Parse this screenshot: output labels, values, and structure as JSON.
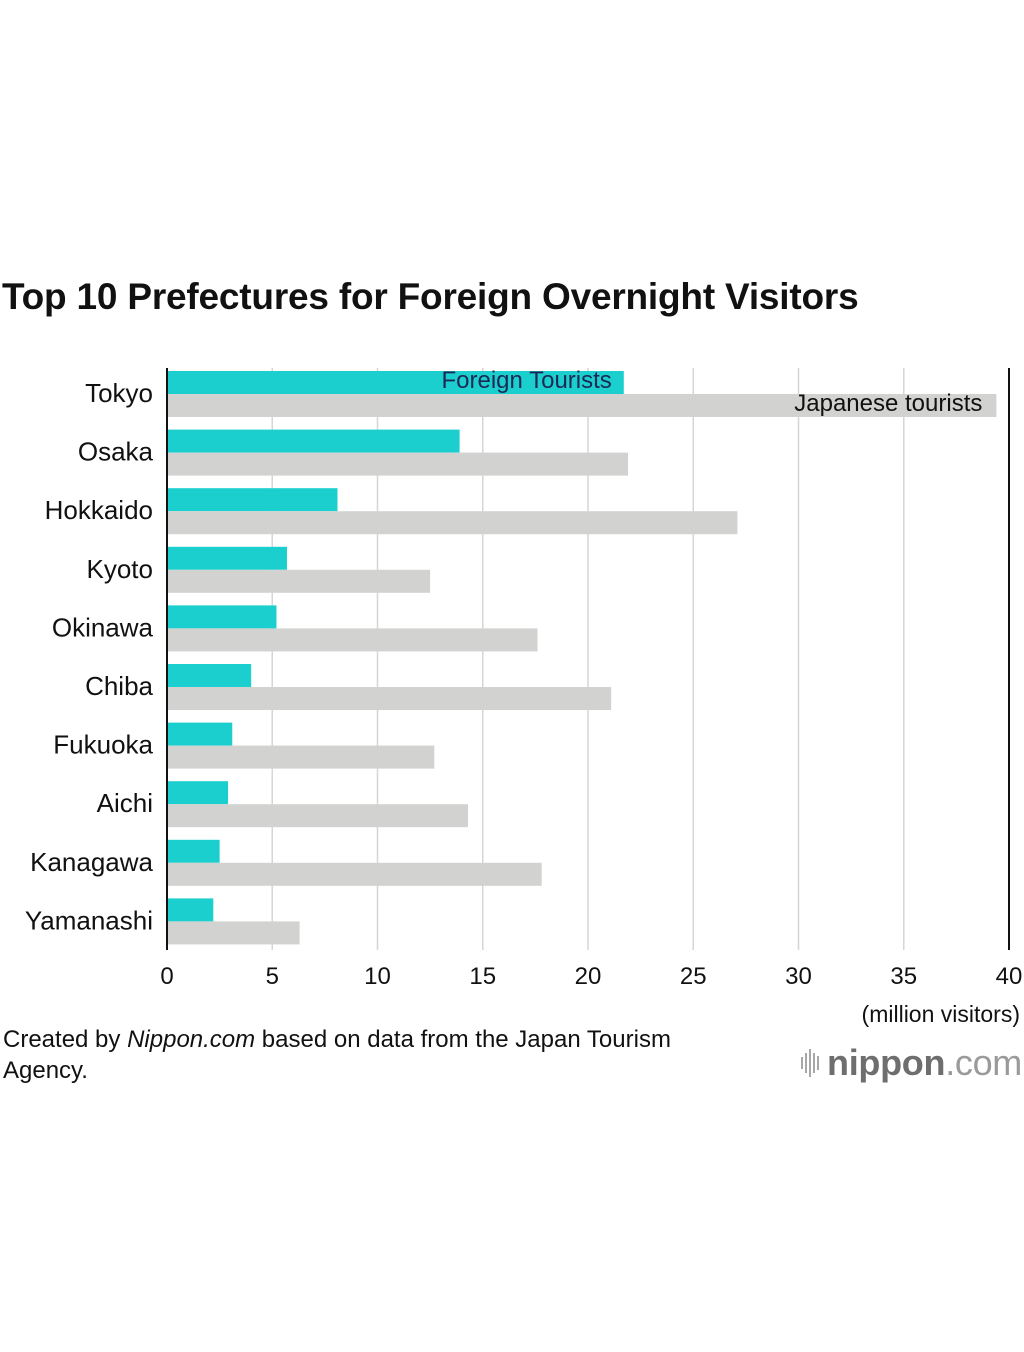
{
  "chart_data": {
    "type": "bar",
    "orientation": "horizontal",
    "title": "Top 10 Prefectures for Foreign Overnight Visitors",
    "categories": [
      "Tokyo",
      "Osaka",
      "Hokkaido",
      "Kyoto",
      "Okinawa",
      "Chiba",
      "Fukuoka",
      "Aichi",
      "Kanagawa",
      "Yamanashi"
    ],
    "series": [
      {
        "name": "Foreign Tourists",
        "color": "#1ccfcf",
        "values": [
          21.7,
          13.9,
          8.1,
          5.7,
          5.2,
          4.0,
          3.1,
          2.9,
          2.5,
          2.2
        ]
      },
      {
        "name": "Japanese tourists",
        "color": "#d2d2d0",
        "values": [
          39.4,
          21.9,
          27.1,
          12.5,
          17.6,
          21.1,
          12.7,
          14.3,
          17.8,
          6.3
        ]
      }
    ],
    "xlim": [
      0,
      40
    ],
    "xticks": [
      0,
      5,
      10,
      15,
      20,
      25,
      30,
      35,
      40
    ],
    "xlabel": "(million visitors)",
    "ylabel": "",
    "grid": "vertical"
  },
  "footer": {
    "source_prefix": "Created by ",
    "source_site": "Nippon.com",
    "source_suffix": " based on data from the Japan Tourism Agency.",
    "logo_strong": "nippon",
    "logo_light": ".com"
  }
}
